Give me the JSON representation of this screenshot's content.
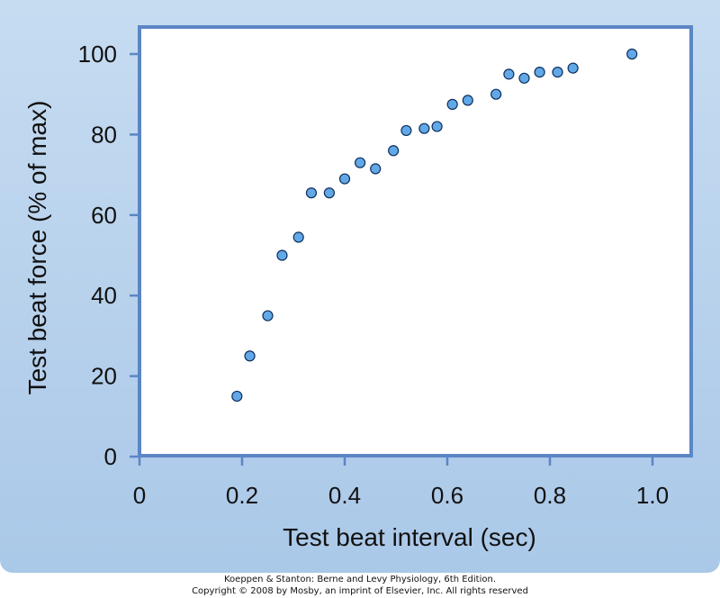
{
  "chart_data": {
    "type": "scatter",
    "xlabel": "Test beat interval (sec)",
    "ylabel": "Test beat force (% of max)",
    "xlim": [
      0,
      1.08
    ],
    "ylim": [
      0,
      105
    ],
    "xticks": [
      0,
      0.2,
      0.4,
      0.6,
      0.8,
      1.0
    ],
    "xtick_labels": [
      "0",
      "0.2",
      "0.4",
      "0.6",
      "0.8",
      "1.0"
    ],
    "yticks": [
      0,
      20,
      40,
      60,
      80,
      100
    ],
    "ytick_labels": [
      "0",
      "20",
      "40",
      "60",
      "80",
      "100"
    ],
    "grid": false,
    "series": [
      {
        "points": [
          {
            "x": 0.19,
            "y": 15
          },
          {
            "x": 0.215,
            "y": 25
          },
          {
            "x": 0.25,
            "y": 35
          },
          {
            "x": 0.278,
            "y": 50
          },
          {
            "x": 0.31,
            "y": 54.5
          },
          {
            "x": 0.335,
            "y": 65.5
          },
          {
            "x": 0.37,
            "y": 65.5
          },
          {
            "x": 0.4,
            "y": 69
          },
          {
            "x": 0.43,
            "y": 73
          },
          {
            "x": 0.46,
            "y": 71.5
          },
          {
            "x": 0.495,
            "y": 76
          },
          {
            "x": 0.52,
            "y": 81
          },
          {
            "x": 0.555,
            "y": 81.5
          },
          {
            "x": 0.58,
            "y": 82
          },
          {
            "x": 0.61,
            "y": 87.5
          },
          {
            "x": 0.64,
            "y": 88.5
          },
          {
            "x": 0.695,
            "y": 90
          },
          {
            "x": 0.72,
            "y": 95
          },
          {
            "x": 0.75,
            "y": 94
          },
          {
            "x": 0.78,
            "y": 95.5
          },
          {
            "x": 0.815,
            "y": 95.5
          },
          {
            "x": 0.845,
            "y": 96.5
          },
          {
            "x": 0.96,
            "y": 100
          }
        ]
      }
    ]
  },
  "credit": {
    "line1": "Koeppen & Stanton: Berne and Levy Physiology, 6th Edition.",
    "line2": "Copyright © 2008 by Mosby, an imprint of Elsevier, Inc. All rights reserved"
  },
  "colors": {
    "frame": "#5b86c5",
    "marker_fill": "#62a8e6",
    "marker_stroke": "#0d2f5e",
    "text": "#111111"
  }
}
